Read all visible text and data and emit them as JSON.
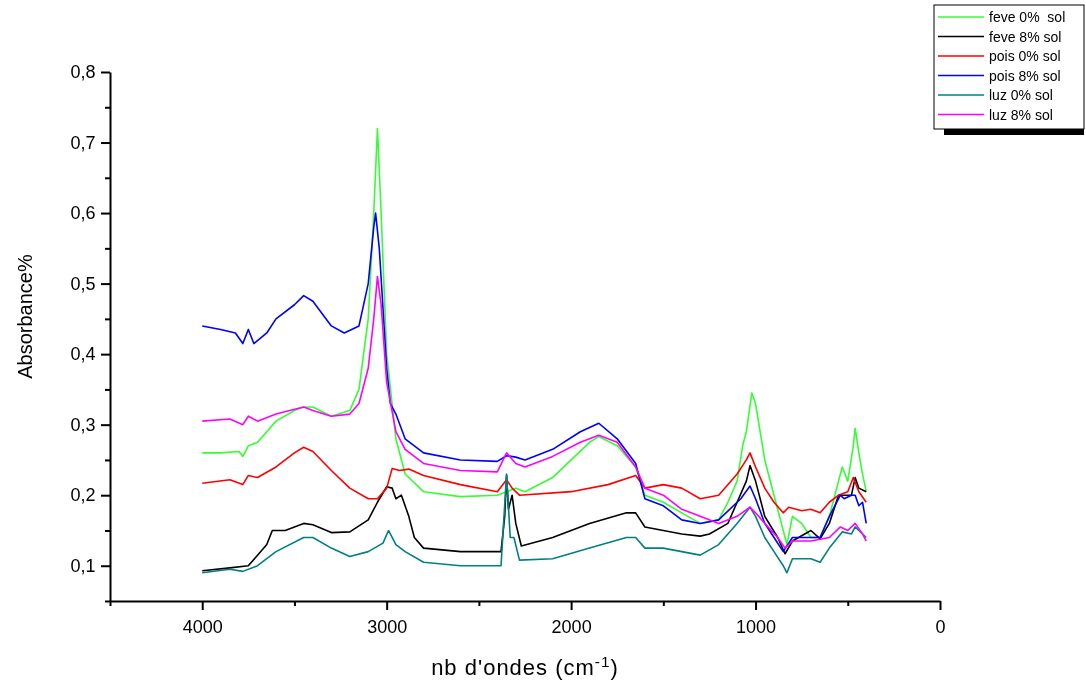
{
  "chart_data": {
    "type": "line",
    "xlabel": "nb d'ondes (cm$^{-1}$)",
    "ylabel": "Absorbance%",
    "xlim": [
      4500,
      0
    ],
    "ylim": [
      0.05,
      0.8
    ],
    "xticks": [
      {
        "value": 4500,
        "label": null
      },
      4000,
      {
        "value": 3500,
        "label": null
      },
      3000,
      {
        "value": 2500,
        "label": null
      },
      2000,
      {
        "value": 1500,
        "label": null
      },
      1000,
      {
        "value": 500,
        "label": null
      },
      0
    ],
    "yticks": [
      {
        "value": 0.05,
        "label": null
      },
      {
        "value": 0.1,
        "label": "0,1"
      },
      {
        "value": 0.15,
        "label": null
      },
      {
        "value": 0.2,
        "label": "0,2"
      },
      {
        "value": 0.25,
        "label": null
      },
      {
        "value": 0.3,
        "label": "0,3"
      },
      {
        "value": 0.35,
        "label": null
      },
      {
        "value": 0.4,
        "label": "0,4"
      },
      {
        "value": 0.45,
        "label": null
      },
      {
        "value": 0.5,
        "label": "0,5"
      },
      {
        "value": 0.55,
        "label": null
      },
      {
        "value": 0.6,
        "label": "0,6"
      },
      {
        "value": 0.65,
        "label": null
      },
      {
        "value": 0.7,
        "label": "0,7"
      },
      {
        "value": 0.75,
        "label": null
      },
      {
        "value": 0.8,
        "label": "0,8"
      }
    ],
    "grid": false,
    "legend": "top right",
    "line_style": "solid",
    "marker": "none",
    "series": [
      {
        "name": "feve 0%  sol",
        "color": "#33ff33",
        "x": [
          4000,
          3900,
          3800,
          3780,
          3750,
          3700,
          3650,
          3600,
          3500,
          3450,
          3400,
          3300,
          3200,
          3150,
          3100,
          3070,
          3050,
          3030,
          3000,
          2950,
          2900,
          2800,
          2600,
          2400,
          2350,
          2300,
          2250,
          2100,
          2000,
          1900,
          1850,
          1750,
          1650,
          1600,
          1500,
          1400,
          1300,
          1200,
          1150,
          1100,
          1070,
          1050,
          1020,
          1000,
          950,
          900,
          850,
          830,
          800,
          750,
          700,
          650,
          600,
          560,
          530,
          500,
          470,
          460,
          440,
          420,
          400
        ],
        "values": [
          0.26,
          0.26,
          0.262,
          0.255,
          0.27,
          0.275,
          0.29,
          0.305,
          0.32,
          0.325,
          0.325,
          0.312,
          0.32,
          0.35,
          0.45,
          0.6,
          0.72,
          0.6,
          0.4,
          0.28,
          0.23,
          0.205,
          0.198,
          0.2,
          0.205,
          0.21,
          0.205,
          0.225,
          0.25,
          0.275,
          0.283,
          0.27,
          0.24,
          0.2,
          0.19,
          0.175,
          0.16,
          0.165,
          0.19,
          0.22,
          0.27,
          0.29,
          0.345,
          0.33,
          0.25,
          0.2,
          0.15,
          0.13,
          0.17,
          0.16,
          0.14,
          0.14,
          0.17,
          0.21,
          0.24,
          0.22,
          0.27,
          0.295,
          0.26,
          0.23,
          0.205
        ]
      },
      {
        "name": "feve 8% sol",
        "color": "#000000",
        "x": [
          4000,
          3850,
          3750,
          3700,
          3650,
          3620,
          3550,
          3450,
          3400,
          3300,
          3200,
          3100,
          3050,
          3000,
          2970,
          2950,
          2920,
          2880,
          2850,
          2800,
          2600,
          2380,
          2360,
          2350,
          2340,
          2320,
          2300,
          2270,
          2100,
          1900,
          1700,
          1650,
          1600,
          1500,
          1400,
          1300,
          1250,
          1150,
          1100,
          1050,
          1030,
          1000,
          950,
          880,
          840,
          800,
          700,
          650,
          600,
          550,
          520,
          480,
          460,
          440,
          400
        ],
        "values": [
          0.093,
          0.097,
          0.1,
          0.115,
          0.13,
          0.15,
          0.15,
          0.16,
          0.158,
          0.147,
          0.148,
          0.165,
          0.19,
          0.212,
          0.21,
          0.195,
          0.2,
          0.17,
          0.14,
          0.125,
          0.12,
          0.12,
          0.17,
          0.228,
          0.18,
          0.2,
          0.16,
          0.128,
          0.14,
          0.16,
          0.175,
          0.175,
          0.155,
          0.15,
          0.145,
          0.142,
          0.145,
          0.16,
          0.19,
          0.22,
          0.242,
          0.22,
          0.17,
          0.14,
          0.117,
          0.135,
          0.15,
          0.138,
          0.16,
          0.2,
          0.2,
          0.2,
          0.225,
          0.21,
          0.205
        ]
      },
      {
        "name": "pois 0% sol",
        "color": "#ff0000",
        "x": [
          4000,
          3850,
          3780,
          3750,
          3700,
          3600,
          3500,
          3450,
          3400,
          3300,
          3200,
          3100,
          3050,
          3000,
          2970,
          2930,
          2880,
          2800,
          2600,
          2400,
          2350,
          2320,
          2280,
          2000,
          1800,
          1650,
          1600,
          1500,
          1400,
          1300,
          1200,
          1100,
          1050,
          1030,
          1000,
          950,
          900,
          850,
          820,
          750,
          700,
          650,
          600,
          550,
          500,
          470,
          440,
          400
        ],
        "values": [
          0.217,
          0.222,
          0.215,
          0.228,
          0.225,
          0.24,
          0.26,
          0.268,
          0.262,
          0.235,
          0.21,
          0.195,
          0.195,
          0.21,
          0.238,
          0.235,
          0.237,
          0.228,
          0.215,
          0.205,
          0.222,
          0.21,
          0.2,
          0.205,
          0.215,
          0.228,
          0.21,
          0.215,
          0.21,
          0.195,
          0.2,
          0.23,
          0.25,
          0.26,
          0.24,
          0.21,
          0.19,
          0.175,
          0.183,
          0.178,
          0.18,
          0.175,
          0.19,
          0.2,
          0.205,
          0.225,
          0.205,
          0.19
        ]
      },
      {
        "name": "pois 8% sol",
        "color": "#0000ff",
        "x": [
          4000,
          3900,
          3820,
          3780,
          3750,
          3720,
          3650,
          3600,
          3500,
          3450,
          3400,
          3300,
          3230,
          3150,
          3100,
          3070,
          3060,
          3040,
          3000,
          2980,
          2950,
          2900,
          2800,
          2600,
          2400,
          2350,
          2300,
          2250,
          2100,
          1950,
          1850,
          1750,
          1650,
          1600,
          1500,
          1400,
          1300,
          1200,
          1100,
          1080,
          1030,
          1000,
          950,
          900,
          850,
          800,
          700,
          650,
          600,
          540,
          520,
          480,
          460,
          440,
          420,
          400
        ],
        "values": [
          0.44,
          0.435,
          0.43,
          0.415,
          0.435,
          0.415,
          0.43,
          0.45,
          0.47,
          0.483,
          0.475,
          0.44,
          0.43,
          0.44,
          0.5,
          0.58,
          0.6,
          0.55,
          0.38,
          0.33,
          0.315,
          0.28,
          0.26,
          0.25,
          0.248,
          0.256,
          0.254,
          0.25,
          0.265,
          0.29,
          0.302,
          0.28,
          0.245,
          0.195,
          0.185,
          0.165,
          0.16,
          0.165,
          0.19,
          0.195,
          0.213,
          0.195,
          0.16,
          0.14,
          0.12,
          0.14,
          0.14,
          0.14,
          0.17,
          0.2,
          0.195,
          0.2,
          0.2,
          0.185,
          0.19,
          0.16
        ]
      },
      {
        "name": "luz 0% sol",
        "color": "#008080",
        "x": [
          4000,
          3850,
          3780,
          3700,
          3600,
          3450,
          3400,
          3300,
          3200,
          3100,
          3020,
          2990,
          2950,
          2900,
          2800,
          2600,
          2380,
          2350,
          2330,
          2310,
          2280,
          2100,
          1900,
          1700,
          1650,
          1600,
          1500,
          1400,
          1300,
          1200,
          1100,
          1030,
          1000,
          950,
          900,
          850,
          830,
          800,
          700,
          650,
          600,
          530,
          480,
          460,
          420,
          400
        ],
        "values": [
          0.09,
          0.095,
          0.092,
          0.1,
          0.12,
          0.14,
          0.14,
          0.125,
          0.113,
          0.12,
          0.132,
          0.15,
          0.13,
          0.12,
          0.105,
          0.1,
          0.1,
          0.23,
          0.14,
          0.14,
          0.108,
          0.11,
          0.125,
          0.14,
          0.14,
          0.125,
          0.125,
          0.12,
          0.115,
          0.13,
          0.16,
          0.183,
          0.17,
          0.14,
          0.12,
          0.1,
          0.09,
          0.11,
          0.11,
          0.105,
          0.125,
          0.148,
          0.145,
          0.155,
          0.145,
          0.14
        ]
      },
      {
        "name": "luz 8% sol",
        "color": "#ff00ff",
        "x": [
          4000,
          3850,
          3780,
          3750,
          3700,
          3600,
          3450,
          3400,
          3300,
          3200,
          3150,
          3100,
          3070,
          3050,
          3030,
          3000,
          2950,
          2900,
          2800,
          2600,
          2400,
          2350,
          2300,
          2250,
          2100,
          1950,
          1850,
          1750,
          1650,
          1600,
          1500,
          1400,
          1300,
          1200,
          1100,
          1030,
          1000,
          950,
          880,
          840,
          800,
          700,
          600,
          540,
          500,
          460,
          420,
          400
        ],
        "values": [
          0.305,
          0.308,
          0.3,
          0.312,
          0.305,
          0.315,
          0.325,
          0.32,
          0.312,
          0.315,
          0.33,
          0.38,
          0.45,
          0.51,
          0.47,
          0.36,
          0.29,
          0.265,
          0.245,
          0.235,
          0.233,
          0.26,
          0.245,
          0.24,
          0.255,
          0.275,
          0.285,
          0.275,
          0.24,
          0.21,
          0.2,
          0.18,
          0.17,
          0.16,
          0.17,
          0.183,
          0.175,
          0.16,
          0.14,
          0.125,
          0.135,
          0.135,
          0.14,
          0.155,
          0.15,
          0.16,
          0.145,
          0.135
        ]
      }
    ]
  }
}
